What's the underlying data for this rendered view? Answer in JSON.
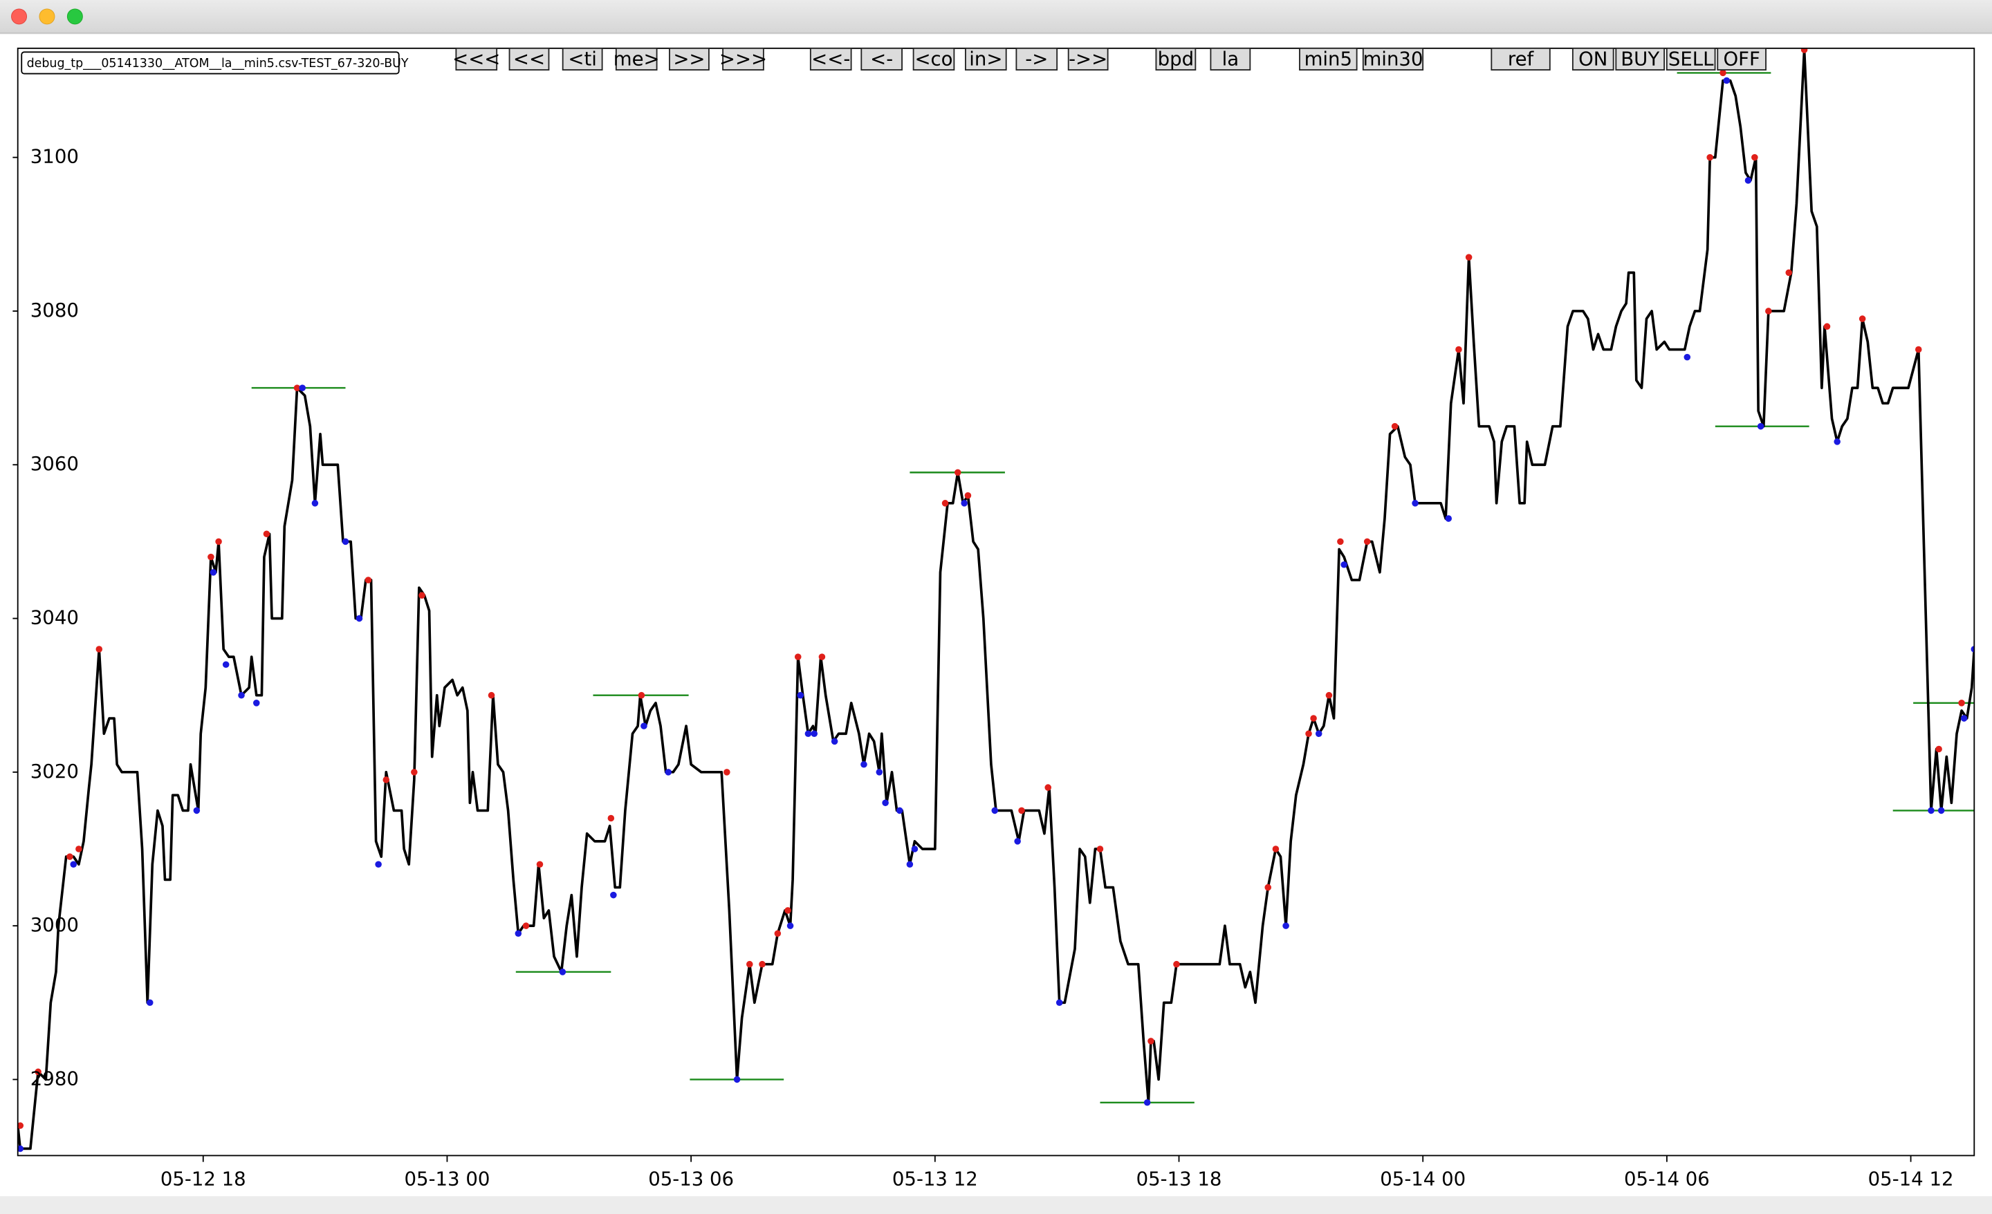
{
  "window": {
    "label": "debug_tp___05141330__ATOM__la__min5.csv-TEST_67-320-BUY",
    "buttons": [
      "<<<",
      "<<",
      "<ti",
      "me>",
      ">>",
      ">>>",
      "<<-",
      "<-",
      "<co",
      "in>",
      "->",
      "->>",
      "bpd",
      "la",
      "min5",
      "min30",
      "ref",
      "ON",
      "BUY",
      "SELL",
      "OFF"
    ]
  },
  "chart_data": {
    "type": "line",
    "xlim": [
      13.44,
      61.56
    ],
    "ylim": [
      2970.1,
      3114.2
    ],
    "xticks": [
      {
        "value": 18,
        "label": "05-12 18"
      },
      {
        "value": 24,
        "label": "05-13 00"
      },
      {
        "value": 30,
        "label": "05-13 06"
      },
      {
        "value": 36,
        "label": "05-13 12"
      },
      {
        "value": 42,
        "label": "05-13 18"
      },
      {
        "value": 48,
        "label": "05-14 00"
      },
      {
        "value": 54,
        "label": "05-14 06"
      },
      {
        "value": 60,
        "label": "05-14 12"
      }
    ],
    "yticks": [
      2980,
      3000,
      3020,
      3040,
      3060,
      3080,
      3100
    ],
    "series": [
      {
        "color": "#000000",
        "marker": "line",
        "x": [
          13.44,
          13.5,
          13.75,
          13.94,
          14.13,
          14.25,
          14.38,
          14.44,
          14.63,
          14.81,
          14.94,
          15.06,
          15.19,
          15.25,
          15.44,
          15.56,
          15.69,
          15.81,
          15.88,
          16,
          16.19,
          16.38,
          16.5,
          16.63,
          16.75,
          16.88,
          17,
          17.06,
          17.19,
          17.25,
          17.38,
          17.5,
          17.63,
          17.69,
          17.88,
          17.94,
          18.06,
          18.19,
          18.31,
          18.38,
          18.5,
          18.63,
          18.75,
          18.94,
          19.13,
          19.19,
          19.31,
          19.44,
          19.5,
          19.63,
          19.69,
          19.94,
          20,
          20.19,
          20.31,
          20.5,
          20.63,
          20.75,
          20.88,
          20.94,
          21.19,
          21.31,
          21.44,
          21.63,
          21.75,
          21.88,
          22,
          22.13,
          22.25,
          22.38,
          22.5,
          22.69,
          22.88,
          22.94,
          23.06,
          23.19,
          23.31,
          23.44,
          23.56,
          23.63,
          23.75,
          23.81,
          23.94,
          24.13,
          24.25,
          24.38,
          24.5,
          24.56,
          24.63,
          24.75,
          25,
          25.13,
          25.25,
          25.38,
          25.5,
          25.63,
          25.75,
          25.88,
          26.13,
          26.25,
          26.38,
          26.5,
          26.63,
          26.81,
          26.94,
          27.06,
          27.19,
          27.31,
          27.44,
          27.63,
          27.75,
          27.88,
          28,
          28.13,
          28.25,
          28.38,
          28.56,
          28.69,
          28.75,
          28.88,
          29,
          29.13,
          29.25,
          29.38,
          29.56,
          29.69,
          29.88,
          30,
          30.25,
          30.75,
          30.94,
          31.13,
          31.25,
          31.44,
          31.56,
          31.75,
          32,
          32.13,
          32.31,
          32.44,
          32.5,
          32.63,
          32.75,
          32.88,
          33,
          33.06,
          33.19,
          33.31,
          33.5,
          33.63,
          33.81,
          33.94,
          34.13,
          34.25,
          34.38,
          34.5,
          34.63,
          34.69,
          34.81,
          34.94,
          35.06,
          35.19,
          35.38,
          35.5,
          35.69,
          36,
          36.13,
          36.31,
          36.44,
          36.56,
          36.69,
          36.81,
          36.94,
          37.06,
          37.19,
          37.38,
          37.5,
          37.88,
          38.06,
          38.19,
          38.56,
          38.69,
          38.81,
          38.94,
          39.06,
          39.19,
          39.44,
          39.56,
          39.69,
          39.81,
          39.94,
          40.06,
          40.19,
          40.38,
          40.56,
          40.75,
          41,
          41.13,
          41.25,
          41.31,
          41.38,
          41.5,
          41.63,
          41.81,
          41.94,
          42.38,
          43,
          43.13,
          43.25,
          43.5,
          43.63,
          43.75,
          43.88,
          44.06,
          44.19,
          44.38,
          44.5,
          44.63,
          44.75,
          44.88,
          45.06,
          45.19,
          45.31,
          45.44,
          45.56,
          45.69,
          45.81,
          45.94,
          46.06,
          46.25,
          46.44,
          46.63,
          46.75,
          46.94,
          47.06,
          47.19,
          47.38,
          47.56,
          47.69,
          47.81,
          48.44,
          48.56,
          48.69,
          48.88,
          49,
          49.13,
          49.25,
          49.38,
          49.63,
          49.75,
          49.81,
          49.94,
          50.06,
          50.25,
          50.38,
          50.5,
          50.56,
          50.69,
          51,
          51.19,
          51.38,
          51.56,
          51.69,
          51.94,
          52.06,
          52.19,
          52.31,
          52.44,
          52.63,
          52.75,
          52.88,
          53,
          53.06,
          53.19,
          53.25,
          53.38,
          53.5,
          53.63,
          53.75,
          53.94,
          54.06,
          54.44,
          54.56,
          54.69,
          54.81,
          55,
          55.06,
          55.19,
          55.38,
          55.56,
          55.69,
          55.81,
          55.94,
          56.06,
          56.19,
          56.25,
          56.38,
          56.5,
          56.88,
          57.06,
          57.19,
          57.38,
          57.56,
          57.69,
          57.81,
          57.88,
          58.06,
          58.19,
          58.31,
          58.44,
          58.56,
          58.69,
          58.81,
          58.94,
          59.06,
          59.19,
          59.31,
          59.44,
          59.56,
          59.94,
          60.19,
          60.5,
          60.63,
          60.75,
          60.88,
          61,
          61.13,
          61.25,
          61.38,
          61.5,
          61.56
        ],
        "values": [
          2974,
          2971,
          2971,
          2981,
          2980,
          2990,
          2994,
          3000,
          3009,
          3009,
          3008,
          3011,
          3018,
          3021,
          3036,
          3025,
          3027,
          3027,
          3021,
          3020,
          3020,
          3020,
          3010,
          2990,
          3008,
          3015,
          3013,
          3006,
          3006,
          3017,
          3017,
          3015,
          3015,
          3021,
          3015,
          3025,
          3031,
          3048,
          3046,
          3050,
          3036,
          3035,
          3035,
          3030,
          3031,
          3035,
          3030,
          3030,
          3048,
          3051,
          3040,
          3040,
          3052,
          3058,
          3070,
          3069,
          3065,
          3055,
          3064,
          3060,
          3060,
          3060,
          3050,
          3050,
          3040,
          3040,
          3045,
          3045,
          3011,
          3009,
          3020,
          3015,
          3015,
          3010,
          3008,
          3019,
          3044,
          3043,
          3041,
          3022,
          3030,
          3026,
          3031,
          3032,
          3030,
          3031,
          3028,
          3016,
          3020,
          3015,
          3015,
          3030,
          3021,
          3020,
          3015,
          3006,
          2999,
          3000,
          3000,
          3008,
          3001,
          3002,
          2996,
          2994,
          3000,
          3004,
          2996,
          3005,
          3012,
          3011,
          3011,
          3011,
          3013,
          3005,
          3005,
          3015,
          3025,
          3026,
          3030,
          3026,
          3028,
          3029,
          3026,
          3020,
          3020,
          3021,
          3026,
          3021,
          3020,
          3020,
          3002,
          2980,
          2988,
          2995,
          2990,
          2995,
          2995,
          2999,
          3002,
          3000,
          3006,
          3035,
          3030,
          3025,
          3026,
          3025,
          3035,
          3030,
          3024,
          3025,
          3025,
          3029,
          3025,
          3021,
          3025,
          3024,
          3020,
          3025,
          3016,
          3020,
          3015,
          3015,
          3008,
          3011,
          3010,
          3010,
          3046,
          3055,
          3055,
          3059,
          3055,
          3056,
          3050,
          3049,
          3040,
          3021,
          3015,
          3015,
          3011,
          3015,
          3015,
          3012,
          3018,
          3005,
          2990,
          2990,
          2997,
          3010,
          3009,
          3003,
          3010,
          3010,
          3005,
          3005,
          2998,
          2995,
          2995,
          2985,
          2977,
          2985,
          2985,
          2980,
          2990,
          2990,
          2995,
          2995,
          2995,
          3000,
          2995,
          2995,
          2992,
          2994,
          2990,
          3000,
          3005,
          3010,
          3009,
          3000,
          3011,
          3017,
          3021,
          3025,
          3027,
          3025,
          3026,
          3030,
          3027,
          3049,
          3048,
          3045,
          3045,
          3050,
          3050,
          3046,
          3053,
          3064,
          3065,
          3061,
          3060,
          3055,
          3055,
          3053,
          3068,
          3075,
          3068,
          3087,
          3076,
          3065,
          3065,
          3063,
          3055,
          3063,
          3065,
          3065,
          3055,
          3055,
          3063,
          3060,
          3060,
          3065,
          3065,
          3078,
          3080,
          3080,
          3079,
          3075,
          3077,
          3075,
          3075,
          3078,
          3080,
          3081,
          3085,
          3085,
          3071,
          3070,
          3079,
          3080,
          3075,
          3076,
          3075,
          3075,
          3078,
          3080,
          3080,
          3088,
          3100,
          3100,
          3110,
          3110,
          3108,
          3104,
          3098,
          3097,
          3100,
          3067,
          3065,
          3080,
          3080,
          3085,
          3094,
          3114,
          3093,
          3091,
          3070,
          3078,
          3066,
          3063,
          3065,
          3066,
          3070,
          3070,
          3079,
          3076,
          3070,
          3070,
          3068,
          3068,
          3070,
          3070,
          3075,
          3015,
          3023,
          3015,
          3022,
          3016,
          3025,
          3028,
          3027,
          3031,
          3036
        ]
      },
      {
        "color": "#e0201a",
        "marker": "dot",
        "x": [
          13.5,
          13.94,
          14.72,
          14.94,
          15.44,
          18.19,
          18.38,
          19.56,
          20.31,
          22.06,
          22.5,
          23.19,
          23.38,
          25.09,
          25.94,
          26.28,
          28.03,
          28.78,
          30.88,
          31.44,
          31.75,
          32.13,
          32.38,
          32.63,
          33.22,
          36.25,
          36.56,
          36.81,
          38.13,
          38.78,
          40.06,
          41.31,
          41.94,
          44.19,
          44.38,
          45.19,
          45.31,
          45.69,
          45.97,
          46.63,
          47.31,
          48.88,
          49.13,
          55.06,
          55.38,
          56.16,
          56.5,
          57,
          57.38,
          57.94,
          58.81,
          60.19,
          60.69,
          61.25
        ],
        "values": [
          2974,
          2981,
          3009,
          3010,
          3036,
          3048,
          3050,
          3051,
          3070,
          3045,
          3019,
          3020,
          3043,
          3030,
          3000,
          3008,
          3014,
          3030,
          3020,
          2995,
          2995,
          2999,
          3002,
          3035,
          3035,
          3055,
          3059,
          3056,
          3015,
          3018,
          3010,
          2985,
          2995,
          3005,
          3010,
          3025,
          3027,
          3030,
          3050,
          3050,
          3065,
          3075,
          3087,
          3100,
          3111,
          3100,
          3080,
          3085,
          3114,
          3078,
          3079,
          3075,
          3023,
          3029
        ]
      },
      {
        "color": "#1a1ae0",
        "marker": "dot",
        "x": [
          13.5,
          14.81,
          16.69,
          17.84,
          18.25,
          18.56,
          18.94,
          19.31,
          20.44,
          20.75,
          21.5,
          21.84,
          22.31,
          25.75,
          26.84,
          28.09,
          28.84,
          29.44,
          31.13,
          32.44,
          32.69,
          32.88,
          33.03,
          33.53,
          34.25,
          34.63,
          34.78,
          35.13,
          35.38,
          35.5,
          36.72,
          37.47,
          38.03,
          39.06,
          41.22,
          44.63,
          45.44,
          46.06,
          47.81,
          48.63,
          54.5,
          55.47,
          56,
          56.31,
          58.19,
          60.5,
          60.75,
          61.31,
          61.56
        ],
        "values": [
          2971,
          3008,
          2990,
          3015,
          3046,
          3034,
          3030,
          3029,
          3070,
          3055,
          3050,
          3040,
          3008,
          2999,
          2994,
          3004,
          3026,
          3020,
          2980,
          3000,
          3030,
          3025,
          3025,
          3024,
          3021,
          3020,
          3016,
          3015,
          3008,
          3010,
          3055,
          3015,
          3011,
          2990,
          2977,
          3000,
          3025,
          3047,
          3055,
          3053,
          3074,
          3110,
          3097,
          3065,
          3063,
          3015,
          3015,
          3027,
          3036
        ]
      }
    ],
    "level_color": "#1a8a1a",
    "levels": [
      {
        "x": [
          19.19,
          21.5
        ],
        "value": 3070
      },
      {
        "x": [
          25.69,
          28.03
        ],
        "value": 2994
      },
      {
        "x": [
          27.59,
          29.94
        ],
        "value": 3030
      },
      {
        "x": [
          29.97,
          32.28
        ],
        "value": 2980
      },
      {
        "x": [
          35.38,
          37.72
        ],
        "value": 3059
      },
      {
        "x": [
          40.06,
          42.38
        ],
        "value": 2977
      },
      {
        "x": [
          54.25,
          56.56
        ],
        "value": 3111
      },
      {
        "x": [
          55.19,
          57.5
        ],
        "value": 3065
      },
      {
        "x": [
          60.06,
          61.56
        ],
        "value": 3029
      },
      {
        "x": [
          59.56,
          61.56
        ],
        "value": 3015
      }
    ]
  }
}
